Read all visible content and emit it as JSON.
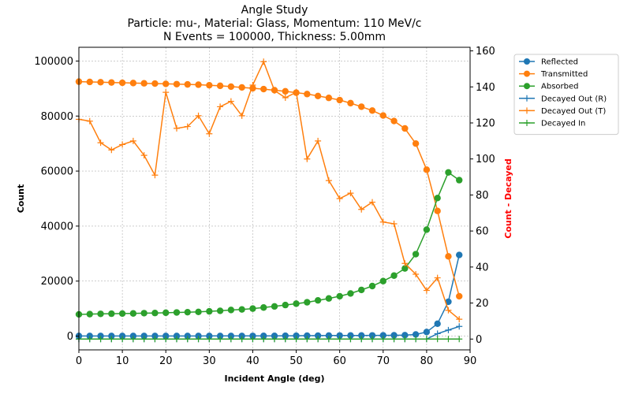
{
  "chart_data": {
    "type": "line",
    "title_lines": [
      "Angle Study",
      "Particle: mu-, Material: Glass, Momentum: 110 MeV/c",
      "N Events = 100000, Thickness: 5.00mm"
    ],
    "xlabel": "Incident Angle (deg)",
    "ylabel_left": "Count",
    "ylabel_right": "Count - Decayed",
    "ylabel_right_color": "#ff0000",
    "xlim": [
      0,
      90
    ],
    "ylim_left": [
      -5000,
      105000
    ],
    "ylim_right": [
      -6,
      162
    ],
    "x_ticks": [
      0,
      10,
      20,
      30,
      40,
      50,
      60,
      70,
      80,
      90
    ],
    "y_left_ticks": [
      0,
      20000,
      40000,
      60000,
      80000,
      100000
    ],
    "y_right_ticks": [
      0,
      20,
      40,
      60,
      80,
      100,
      120,
      140,
      160
    ],
    "grid": true,
    "legend_position": "outside-right-top",
    "x": [
      0,
      2.5,
      5,
      7.5,
      10,
      12.5,
      15,
      17.5,
      20,
      22.5,
      25,
      27.5,
      30,
      32.5,
      35,
      37.5,
      40,
      42.5,
      45,
      47.5,
      50,
      52.5,
      55,
      57.5,
      60,
      62.5,
      65,
      67.5,
      70,
      72.5,
      75,
      77.5,
      80,
      82.5,
      85,
      87.5
    ],
    "series": [
      {
        "name": "Reflected",
        "axis": "left",
        "marker": "circle",
        "color": "#1f77b4",
        "values": [
          50,
          50,
          50,
          50,
          50,
          50,
          50,
          50,
          50,
          50,
          50,
          50,
          60,
          60,
          70,
          70,
          80,
          90,
          100,
          120,
          140,
          160,
          180,
          200,
          220,
          240,
          250,
          260,
          280,
          300,
          350,
          600,
          1500,
          4500,
          12500,
          29500
        ]
      },
      {
        "name": "Transmitted",
        "axis": "left",
        "marker": "circle",
        "color": "#ff7f0e",
        "values": [
          92500,
          92400,
          92300,
          92200,
          92100,
          92000,
          91900,
          91800,
          91700,
          91600,
          91500,
          91400,
          91200,
          91000,
          90700,
          90400,
          90100,
          89800,
          89400,
          89000,
          88500,
          88000,
          87300,
          86600,
          85800,
          84700,
          83400,
          82000,
          80200,
          78200,
          75500,
          70000,
          60500,
          45500,
          29000,
          14500
        ]
      },
      {
        "name": "Absorbed",
        "axis": "left",
        "marker": "circle",
        "color": "#2ca02c",
        "values": [
          7900,
          8000,
          8100,
          8150,
          8200,
          8250,
          8350,
          8400,
          8500,
          8600,
          8700,
          8800,
          9000,
          9200,
          9500,
          9700,
          10000,
          10400,
          10800,
          11300,
          11800,
          12300,
          13000,
          13700,
          14500,
          15500,
          16800,
          18200,
          20000,
          22000,
          24600,
          29800,
          38700,
          50200,
          59500,
          56700
        ]
      },
      {
        "name": "Decayed Out (R)",
        "axis": "right",
        "marker": "plus",
        "color": "#1f77b4",
        "values": [
          0,
          0,
          0,
          0,
          0,
          0,
          0,
          0,
          0,
          0,
          0,
          0,
          0,
          0,
          0,
          0,
          0,
          0,
          0,
          0,
          0,
          0,
          0,
          0,
          0,
          0,
          0,
          0,
          0,
          0,
          0,
          0,
          0,
          3,
          5,
          7
        ]
      },
      {
        "name": "Decayed Out (T)",
        "axis": "right",
        "marker": "plus",
        "color": "#ff7f0e",
        "values": [
          122,
          121,
          109,
          105,
          108,
          110,
          102,
          91,
          137,
          117,
          118,
          124,
          114,
          129,
          132,
          124,
          141,
          154,
          138,
          134,
          137,
          100,
          110,
          88,
          78,
          81,
          72,
          76,
          65,
          64,
          42,
          36,
          27,
          34,
          16,
          11
        ]
      },
      {
        "name": "Decayed In",
        "axis": "right",
        "marker": "plus",
        "color": "#2ca02c",
        "values": [
          0,
          0,
          0,
          0,
          0,
          0,
          0,
          0,
          0,
          0,
          0,
          0,
          0,
          0,
          0,
          0,
          0,
          0,
          0,
          0,
          0,
          0,
          0,
          0,
          0,
          0,
          0,
          0,
          0,
          0,
          0,
          0,
          0,
          0,
          0,
          0
        ]
      }
    ]
  }
}
